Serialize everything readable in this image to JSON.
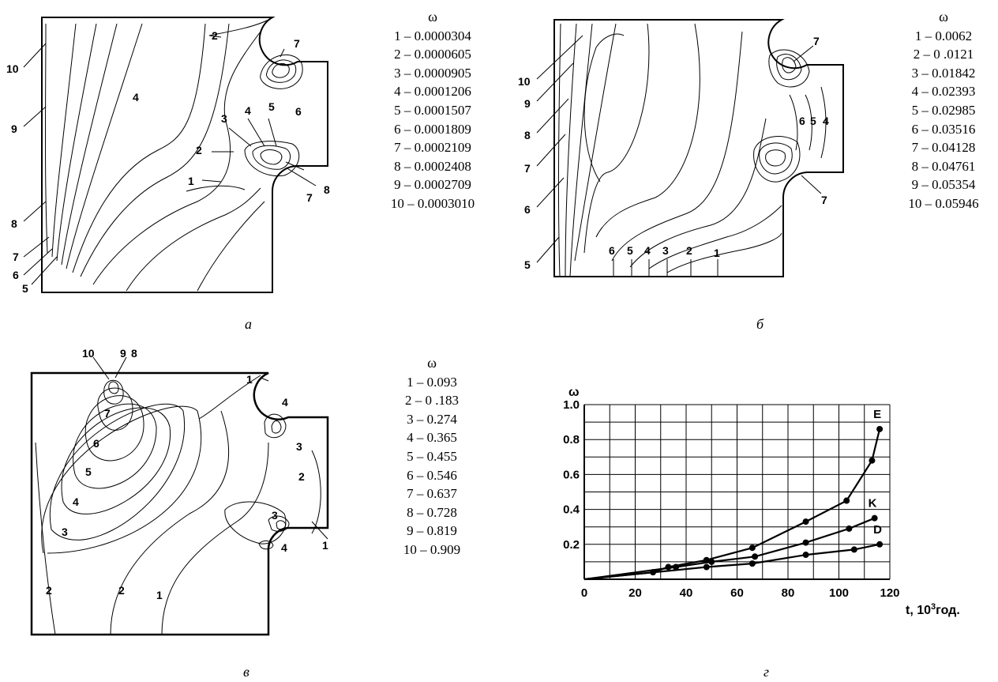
{
  "panel_a": {
    "legend_title": "ω",
    "legend": [
      "1 – 0.0000304",
      "2 – 0.0000605",
      "3 – 0.0000905",
      "4 – 0.0001206",
      "5 – 0.0001507",
      "6 – 0.0001809",
      "7 – 0.0002109",
      "8 – 0.0002408",
      "9 – 0.0002709",
      "10 – 0.0003010"
    ],
    "caption": "а"
  },
  "panel_b": {
    "legend_title": "ω",
    "legend": [
      "1 – 0.0062",
      "2 – 0 .0121",
      "3 – 0.01842",
      "4 – 0.02393",
      "5 – 0.02985",
      "6 – 0.03516",
      "7 – 0.04128",
      "8 – 0.04761",
      "9 – 0.05354",
      "10 – 0.05946"
    ],
    "caption": "б"
  },
  "panel_c": {
    "legend_title": "ω",
    "legend": [
      "1 – 0.093",
      "2 – 0 .183",
      "3 – 0.274",
      "4 – 0.365",
      "5 – 0.455",
      "6 – 0.546",
      "7 – 0.637",
      "8 – 0.728",
      "9 – 0.819",
      "10 – 0.909"
    ],
    "caption": "в"
  },
  "panel_d": {
    "caption": "г"
  },
  "chart_data": {
    "type": "line",
    "ylabel": "ω",
    "xlabel": "t, 10³год.",
    "xlabel_main": "t, 10",
    "xlabel_sup": "3",
    "xlabel_unit": "год.",
    "xlim": [
      0,
      120
    ],
    "ylim": [
      0,
      1.0
    ],
    "x_ticks": [
      "0",
      "20",
      "40",
      "60",
      "80",
      "100",
      "120"
    ],
    "y_ticks": [
      "0.2",
      "0.4",
      "0.6",
      "0.8",
      "1.0"
    ],
    "grid": true,
    "series": [
      {
        "name": "E",
        "points": [
          [
            0,
            0
          ],
          [
            27,
            0.04
          ],
          [
            33,
            0.07
          ],
          [
            48,
            0.11
          ],
          [
            66,
            0.18
          ],
          [
            87,
            0.33
          ],
          [
            103,
            0.45
          ],
          [
            113,
            0.68
          ],
          [
            116,
            0.86
          ]
        ]
      },
      {
        "name": "K",
        "points": [
          [
            0,
            0
          ],
          [
            36,
            0.07
          ],
          [
            50,
            0.1
          ],
          [
            67,
            0.13
          ],
          [
            87,
            0.21
          ],
          [
            104,
            0.29
          ],
          [
            114,
            0.35
          ]
        ]
      },
      {
        "name": "D",
        "points": [
          [
            0,
            0
          ],
          [
            48,
            0.07
          ],
          [
            66,
            0.09
          ],
          [
            87,
            0.14
          ],
          [
            106,
            0.17
          ],
          [
            116,
            0.2
          ]
        ]
      }
    ]
  }
}
